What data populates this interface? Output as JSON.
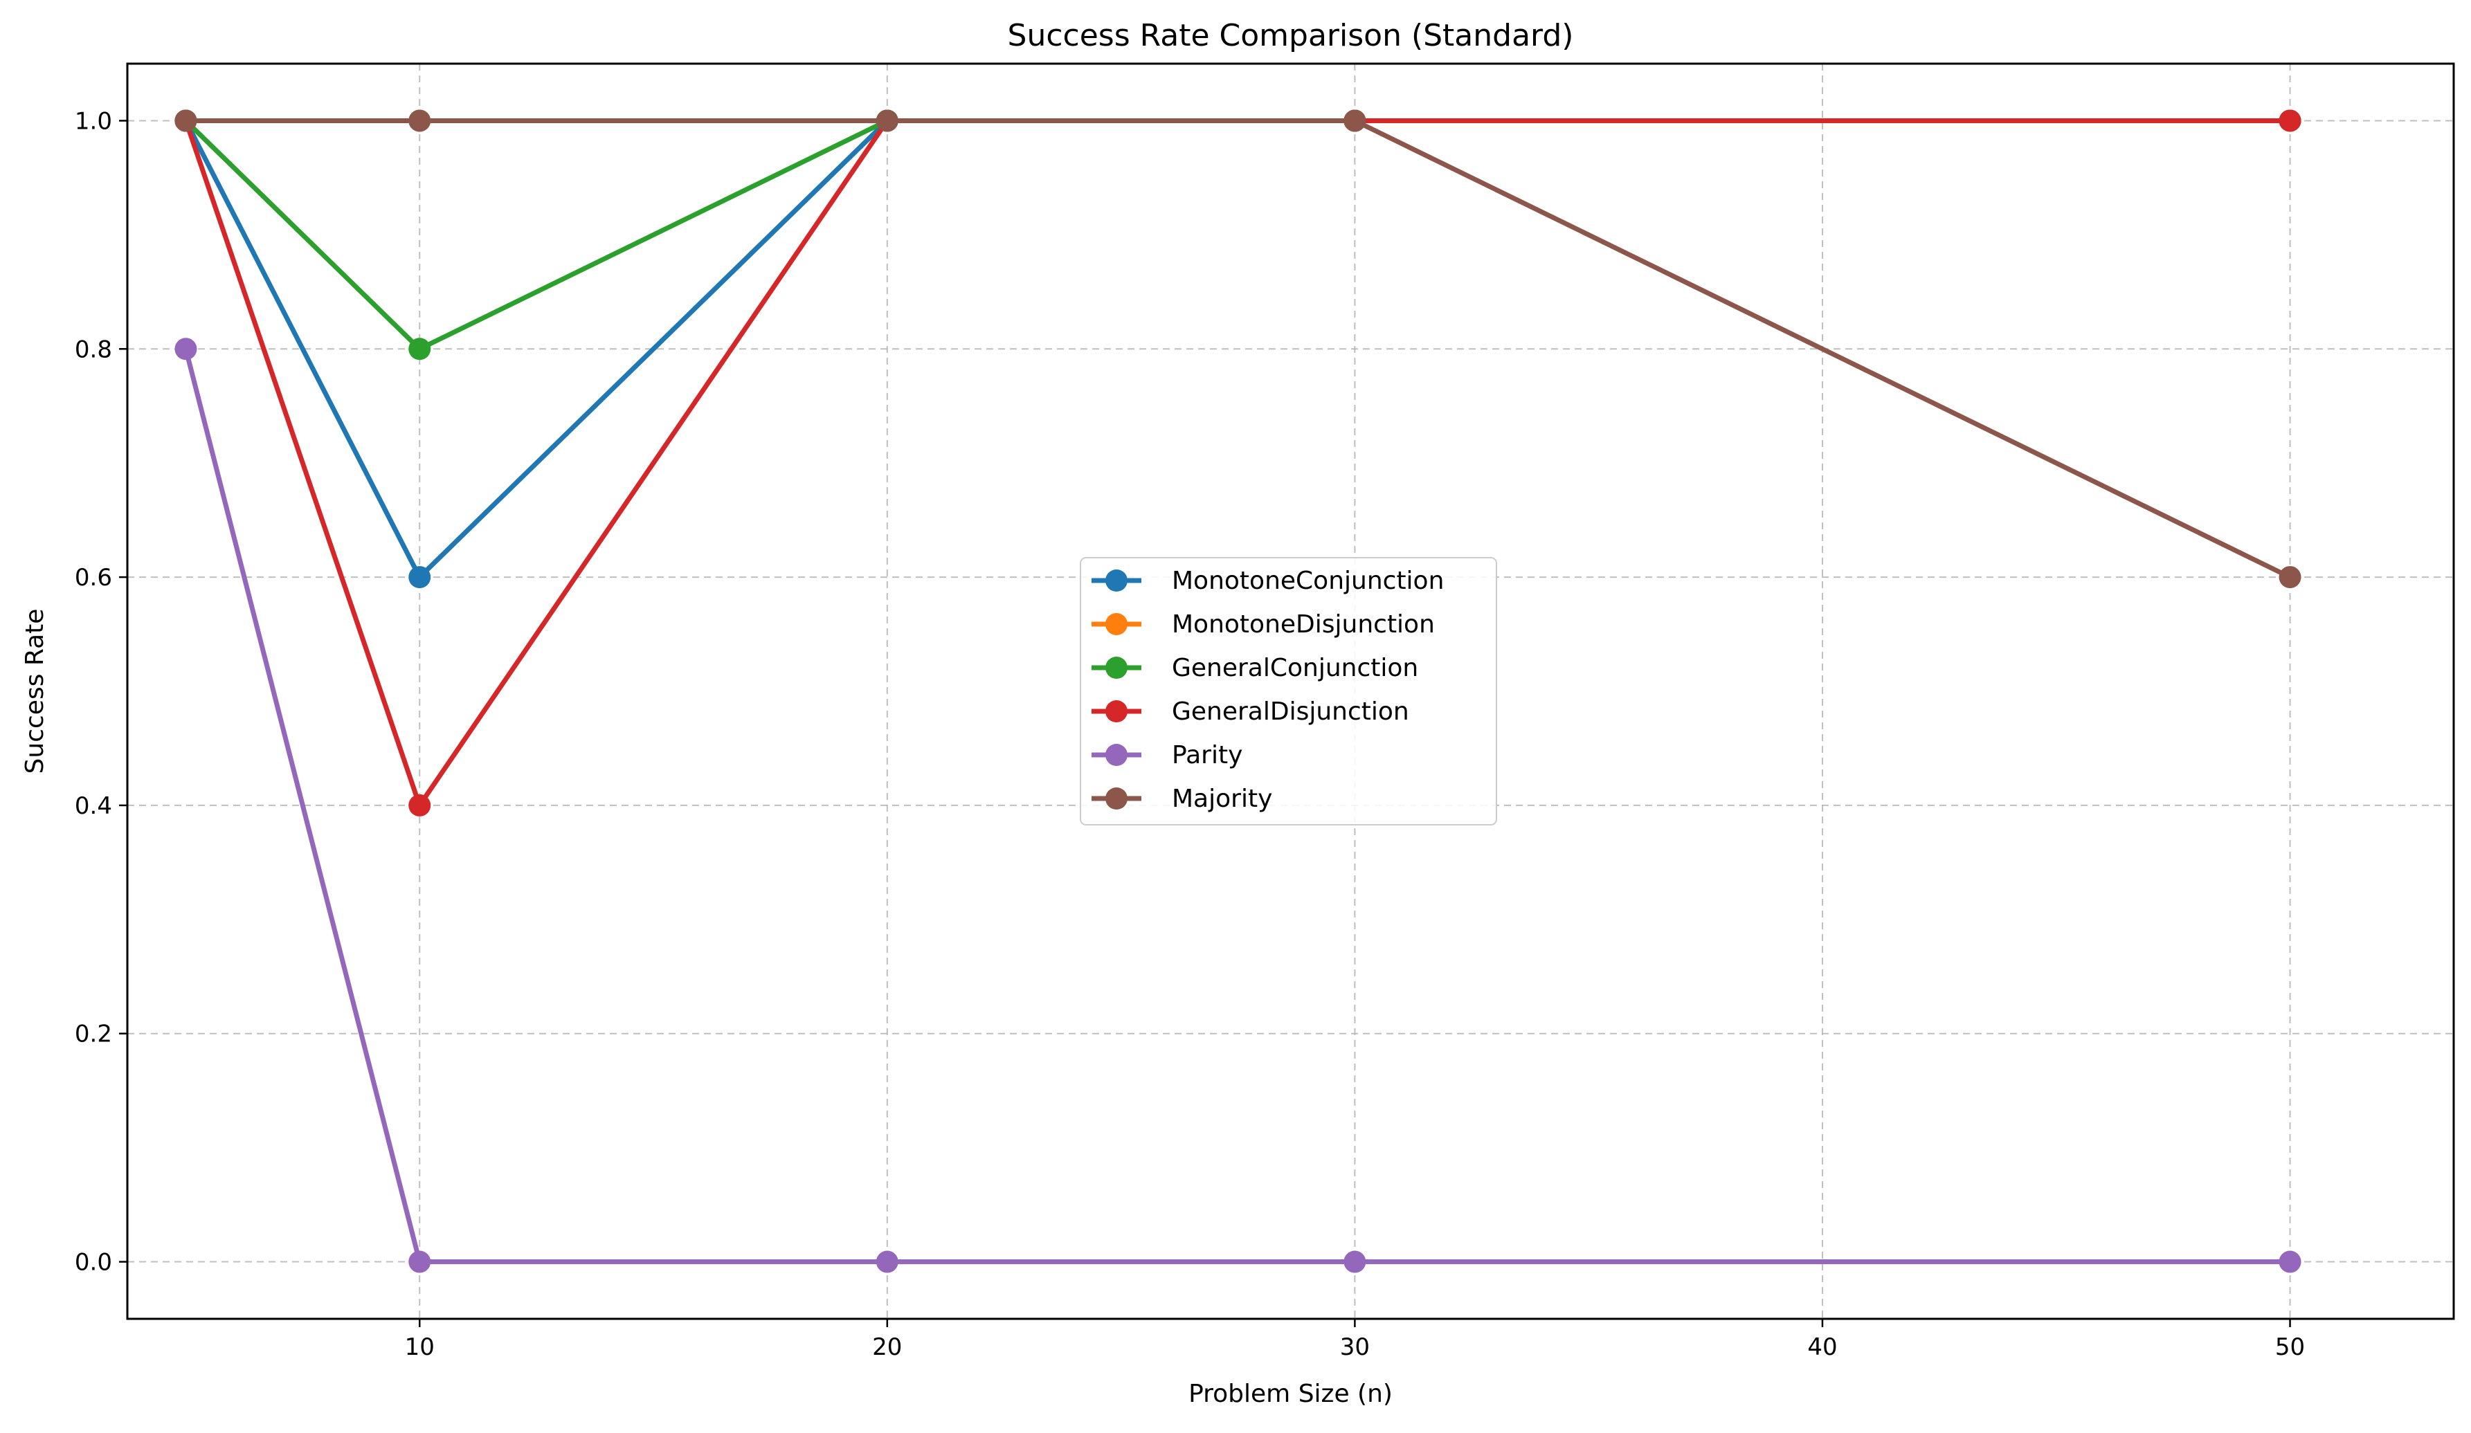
{
  "chart_data": {
    "type": "line",
    "title": "Success Rate Comparison (Standard)",
    "xlabel": "Problem Size (n)",
    "ylabel": "Success Rate",
    "x": [
      5,
      10,
      20,
      30,
      50
    ],
    "xlim": [
      3.75,
      53.5
    ],
    "ylim": [
      -0.05,
      1.05
    ],
    "xticks": [
      10,
      20,
      30,
      40,
      50
    ],
    "yticks": [
      0.0,
      0.2,
      0.4,
      0.6,
      0.8,
      1.0
    ],
    "ytick_labels": [
      "0.0",
      "0.2",
      "0.4",
      "0.6",
      "0.8",
      "1.0"
    ],
    "grid": true,
    "legend_position": "center",
    "series": [
      {
        "name": "MonotoneConjunction",
        "color": "#1f77b4",
        "values": [
          1.0,
          0.6,
          1.0,
          1.0,
          1.0
        ]
      },
      {
        "name": "MonotoneDisjunction",
        "color": "#ff7f0e",
        "values": [
          1.0,
          1.0,
          1.0,
          1.0,
          1.0
        ]
      },
      {
        "name": "GeneralConjunction",
        "color": "#2ca02c",
        "values": [
          1.0,
          0.8,
          1.0,
          1.0,
          1.0
        ]
      },
      {
        "name": "GeneralDisjunction",
        "color": "#d62728",
        "values": [
          1.0,
          0.4,
          1.0,
          1.0,
          1.0
        ]
      },
      {
        "name": "Parity",
        "color": "#9467bd",
        "values": [
          0.8,
          0.0,
          0.0,
          0.0,
          0.0
        ]
      },
      {
        "name": "Majority",
        "color": "#8c564b",
        "values": [
          1.0,
          1.0,
          1.0,
          1.0,
          0.6
        ]
      }
    ]
  }
}
